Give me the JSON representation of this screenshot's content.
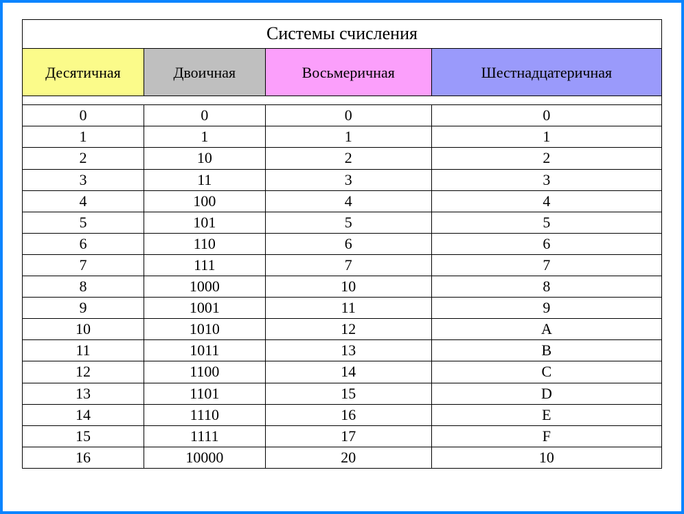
{
  "table": {
    "type": "table",
    "title": "Системы счисления",
    "columns": [
      {
        "label": "Десятичная",
        "bg": "#fbfb8a",
        "width_pct": 19
      },
      {
        "label": "Двоичная",
        "bg": "#bfbfbf",
        "width_pct": 19
      },
      {
        "label": "Восьмеричная",
        "bg": "#fb9ffb",
        "width_pct": 26
      },
      {
        "label": "Шестнадцатеричная",
        "bg": "#9a9afb",
        "width_pct": 36
      }
    ],
    "rows": [
      [
        "0",
        "0",
        "0",
        "0"
      ],
      [
        "1",
        "1",
        "1",
        "1"
      ],
      [
        "2",
        "10",
        "2",
        "2"
      ],
      [
        "3",
        "11",
        "3",
        "3"
      ],
      [
        "4",
        "100",
        "4",
        "4"
      ],
      [
        "5",
        "101",
        "5",
        "5"
      ],
      [
        "6",
        "110",
        "6",
        "6"
      ],
      [
        "7",
        "111",
        "7",
        "7"
      ],
      [
        "8",
        "1000",
        "10",
        "8"
      ],
      [
        "9",
        "1001",
        "11",
        "9"
      ],
      [
        "10",
        "1010",
        "12",
        "A"
      ],
      [
        "11",
        "1011",
        "13",
        "B"
      ],
      [
        "12",
        "1100",
        "14",
        "C"
      ],
      [
        "13",
        "1101",
        "15",
        "D"
      ],
      [
        "14",
        "1110",
        "16",
        "E"
      ],
      [
        "15",
        "1111",
        "17",
        "F"
      ],
      [
        "16",
        "10000",
        "20",
        "10"
      ]
    ],
    "title_fontsize": 26,
    "header_fontsize": 22,
    "cell_fontsize": 22,
    "border_color": "#000000",
    "frame_border_color": "#0a84ff",
    "background_color": "#ffffff",
    "font_family": "Times New Roman"
  }
}
